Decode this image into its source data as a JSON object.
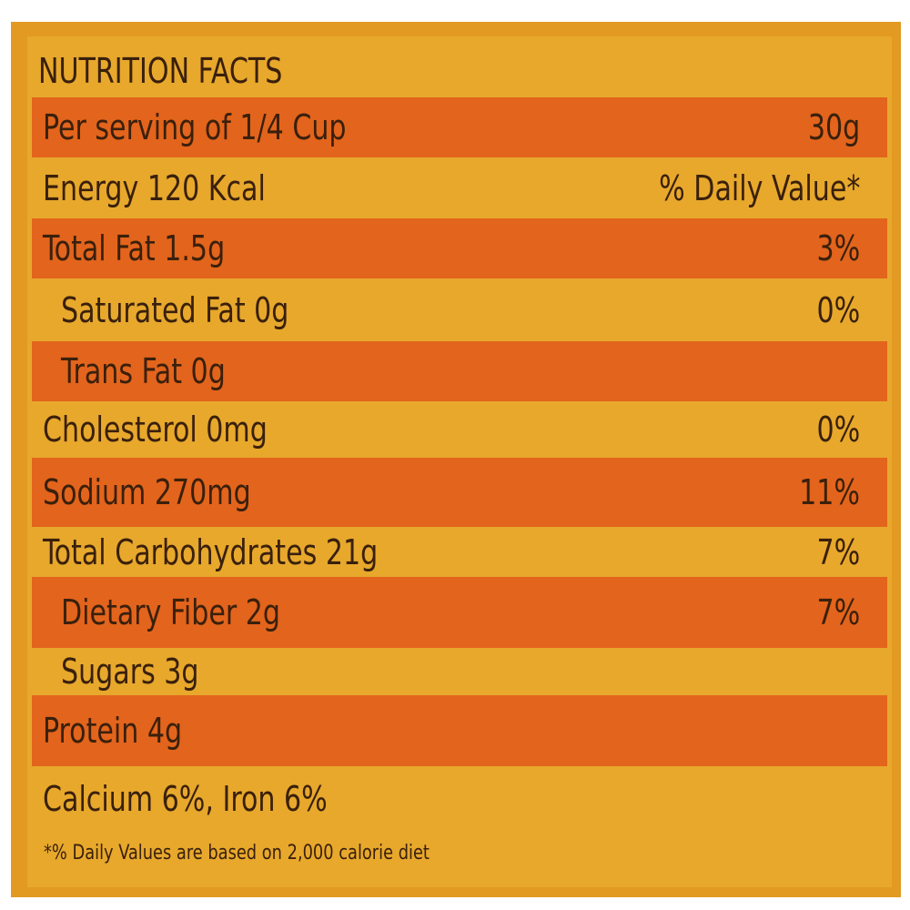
{
  "title": "NUTRITION FACTS",
  "rows": [
    {
      "label": "Per serving of 1/4 Cup",
      "value": "30g"
    },
    {
      "label": "Energy 120 Kcal",
      "value": "% Daily Value*"
    },
    {
      "label": "Total Fat 1.5g",
      "value": "3%"
    },
    {
      "label": "Saturated Fat 0g",
      "value": "0%"
    },
    {
      "label": "Trans Fat 0g",
      "value": ""
    },
    {
      "label": "Cholesterol 0mg",
      "value": "0%"
    },
    {
      "label": "Sodium 270mg",
      "value": "11%"
    },
    {
      "label": "Total Carbohydrates 21g",
      "value": "7%"
    },
    {
      "label": "Dietary Fiber 2g",
      "value": "7%"
    },
    {
      "label": "Sugars 3g",
      "value": ""
    },
    {
      "label": "Protein 4g",
      "value": ""
    },
    {
      "label": "Calcium 6%, Iron 6%",
      "value": ""
    }
  ],
  "footnote": "*% Daily Values are based on 2,000 calorie diet",
  "colors": {
    "background": "#e7a82c",
    "stripe": "#e3641c",
    "text": "#3a200c"
  }
}
